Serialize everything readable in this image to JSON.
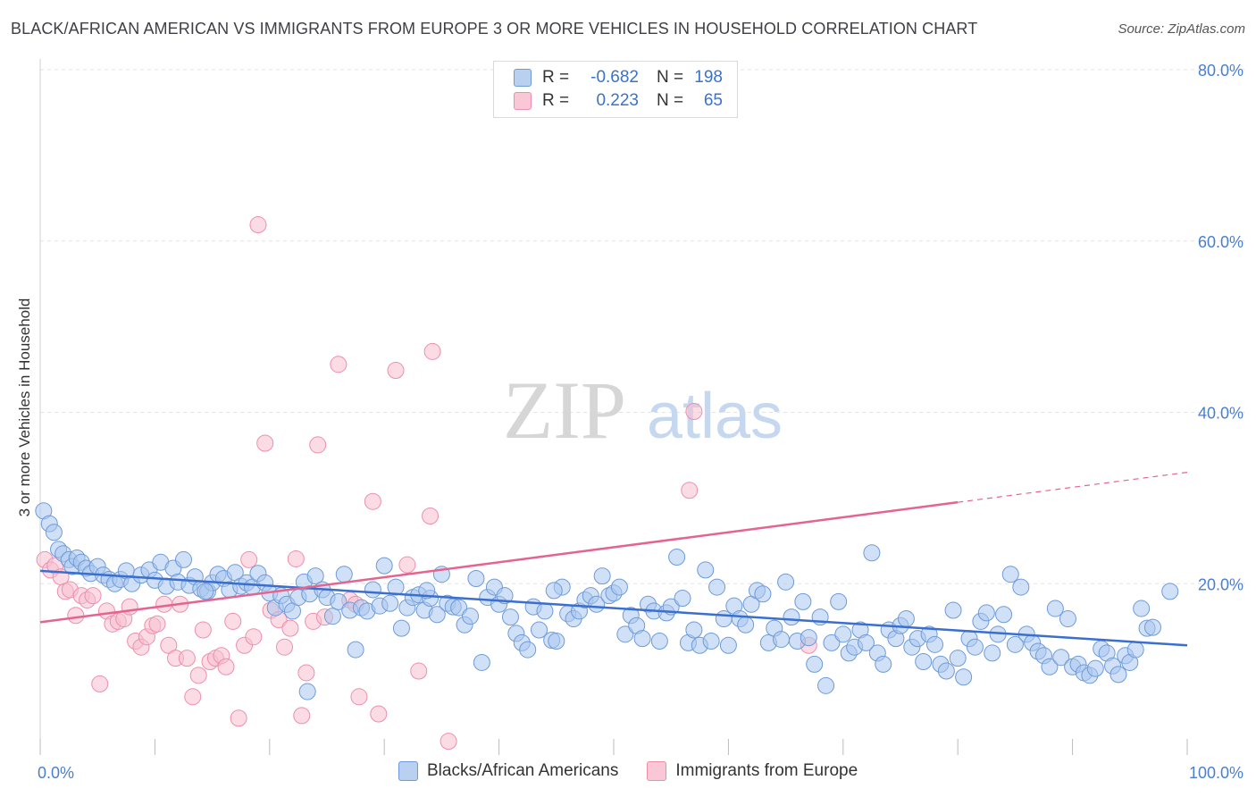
{
  "title": "BLACK/AFRICAN AMERICAN VS IMMIGRANTS FROM EUROPE 3 OR MORE VEHICLES IN HOUSEHOLD CORRELATION CHART",
  "source": "Source: ZipAtlas.com",
  "watermark": {
    "zip": "ZIP",
    "atlas": "atlas"
  },
  "legend": {
    "series1": {
      "r_label": "R =",
      "r_value": "-0.682",
      "n_label": "N =",
      "n_value": "198",
      "color": "#8fb4e8"
    },
    "series2": {
      "r_label": "R =",
      "r_value": "0.223",
      "n_label": "N =",
      "n_value": "65",
      "color": "#f4a7bf"
    }
  },
  "bottom_legend": {
    "series1": "Blacks/African Americans",
    "series2": "Immigrants from Europe"
  },
  "colors": {
    "blue_fill": "#a9c6ee",
    "blue_stroke": "#6e9bd8",
    "blue_line": "#3a6fd0",
    "pink_fill": "#f7bfd0",
    "pink_stroke": "#ec8fae",
    "pink_line": "#e5648f",
    "tick_text": "#4a7fd0",
    "grid": "#e3e3e3"
  },
  "chart_data": {
    "type": "scatter",
    "title": "BLACK/AFRICAN AMERICAN VS IMMIGRANTS FROM EUROPE 3 OR MORE VEHICLES IN HOUSEHOLD CORRELATION CHART",
    "xlabel": "",
    "ylabel": "3 or more Vehicles in Household",
    "xlim": [
      0,
      100
    ],
    "ylim": [
      0,
      80
    ],
    "x_tick_labels": [
      {
        "value": 0,
        "label": "0.0%"
      },
      {
        "value": 100,
        "label": "100.0%"
      }
    ],
    "y_tick_labels": [
      {
        "value": 20,
        "label": "20.0%"
      },
      {
        "value": 40,
        "label": "40.0%"
      },
      {
        "value": 60,
        "label": "60.0%"
      },
      {
        "value": 80,
        "label": "80.0%"
      }
    ],
    "grid": true,
    "legend_position": "top-center",
    "series": [
      {
        "name": "Blacks/African Americans",
        "color": "#8fb4e8",
        "trend": {
          "x": [
            0,
            100
          ],
          "y": [
            21.5,
            12.8
          ]
        },
        "points": [
          [
            0.3,
            28.5
          ],
          [
            0.8,
            27
          ],
          [
            1.2,
            26
          ],
          [
            1.6,
            24
          ],
          [
            2,
            23.5
          ],
          [
            2.5,
            22.8
          ],
          [
            2.8,
            22
          ],
          [
            3.2,
            23
          ],
          [
            3.6,
            22.5
          ],
          [
            4,
            21.8
          ],
          [
            4.4,
            21.2
          ],
          [
            5,
            22
          ],
          [
            5.5,
            21
          ],
          [
            6,
            20.5
          ],
          [
            6.5,
            20
          ],
          [
            7,
            20.5
          ],
          [
            7.5,
            21.5
          ],
          [
            8,
            20
          ],
          [
            8.8,
            21
          ],
          [
            9.5,
            21.6
          ],
          [
            10,
            20.4
          ],
          [
            10.5,
            22.5
          ],
          [
            11,
            19.7
          ],
          [
            11.6,
            21.8
          ],
          [
            12,
            20.2
          ],
          [
            12.5,
            22.8
          ],
          [
            13,
            19.8
          ],
          [
            13.5,
            20.8
          ],
          [
            14,
            19.4
          ],
          [
            14.6,
            19.1
          ],
          [
            15,
            20.1
          ],
          [
            15.5,
            21.1
          ],
          [
            16,
            20.6
          ],
          [
            16.5,
            19.3
          ],
          [
            17,
            21.3
          ],
          [
            17.5,
            19.7
          ],
          [
            18,
            20.1
          ],
          [
            18.5,
            19.6
          ],
          [
            19,
            21.2
          ],
          [
            19.6,
            20.1
          ],
          [
            20,
            18.9
          ],
          [
            20.5,
            17.2
          ],
          [
            21,
            18.6
          ],
          [
            21.5,
            17.6
          ],
          [
            22,
            16.8
          ],
          [
            22.5,
            18.4
          ],
          [
            23,
            20.2
          ],
          [
            23.5,
            18.8
          ],
          [
            24,
            20.9
          ],
          [
            24.6,
            19.3
          ],
          [
            25,
            18.4
          ],
          [
            25.5,
            16.2
          ],
          [
            26,
            17.9
          ],
          [
            26.5,
            21.1
          ],
          [
            27,
            16.9
          ],
          [
            27.5,
            12.3
          ],
          [
            28,
            17.2
          ],
          [
            28.5,
            16.8
          ],
          [
            29,
            19.3
          ],
          [
            29.6,
            17.4
          ],
          [
            30,
            22.1
          ],
          [
            30.5,
            17.7
          ],
          [
            31,
            19.6
          ],
          [
            31.5,
            14.8
          ],
          [
            32,
            17.2
          ],
          [
            32.5,
            18.4
          ],
          [
            33,
            18.7
          ],
          [
            33.5,
            16.9
          ],
          [
            34,
            18.3
          ],
          [
            34.6,
            16.4
          ],
          [
            35,
            21.1
          ],
          [
            35.5,
            17.7
          ],
          [
            36,
            17.3
          ],
          [
            36.5,
            17.2
          ],
          [
            37,
            15.2
          ],
          [
            37.5,
            16.2
          ],
          [
            38,
            20.6
          ],
          [
            38.5,
            10.8
          ],
          [
            39,
            18.4
          ],
          [
            39.6,
            19.6
          ],
          [
            40,
            17.6
          ],
          [
            40.5,
            18.6
          ],
          [
            41,
            16.1
          ],
          [
            41.5,
            14.2
          ],
          [
            42,
            13.1
          ],
          [
            42.5,
            12.3
          ],
          [
            43,
            17.3
          ],
          [
            43.5,
            14.6
          ],
          [
            44,
            16.8
          ],
          [
            44.6,
            13.4
          ],
          [
            45,
            13.3
          ],
          [
            45.5,
            19.6
          ],
          [
            46,
            16.5
          ],
          [
            46.5,
            15.9
          ],
          [
            47,
            16.8
          ],
          [
            47.5,
            18.1
          ],
          [
            48,
            18.6
          ],
          [
            48.5,
            17.6
          ],
          [
            49,
            20.9
          ],
          [
            49.6,
            18.6
          ],
          [
            50,
            18.9
          ],
          [
            50.5,
            19.6
          ],
          [
            51,
            14.1
          ],
          [
            51.5,
            16.3
          ],
          [
            52,
            15.1
          ],
          [
            52.5,
            13.6
          ],
          [
            53,
            17.6
          ],
          [
            53.5,
            16.8
          ],
          [
            54,
            13.3
          ],
          [
            54.6,
            16.6
          ],
          [
            55,
            17.3
          ],
          [
            55.5,
            23.1
          ],
          [
            56,
            18.3
          ],
          [
            56.5,
            13.1
          ],
          [
            57,
            14.6
          ],
          [
            57.5,
            12.8
          ],
          [
            58,
            21.6
          ],
          [
            58.5,
            13.3
          ],
          [
            59,
            19.6
          ],
          [
            59.6,
            15.9
          ],
          [
            60,
            12.8
          ],
          [
            60.5,
            17.4
          ],
          [
            61,
            15.9
          ],
          [
            61.5,
            15.2
          ],
          [
            62,
            17.6
          ],
          [
            62.5,
            19.2
          ],
          [
            63,
            18.8
          ],
          [
            63.5,
            13.1
          ],
          [
            64,
            14.8
          ],
          [
            64.6,
            13.5
          ],
          [
            65,
            20.2
          ],
          [
            65.5,
            16.1
          ],
          [
            66,
            13.3
          ],
          [
            66.5,
            17.9
          ],
          [
            67,
            13.7
          ],
          [
            67.5,
            10.6
          ],
          [
            68,
            16.1
          ],
          [
            68.5,
            8.1
          ],
          [
            69,
            13.1
          ],
          [
            69.6,
            17.9
          ],
          [
            70,
            14.1
          ],
          [
            70.5,
            11.9
          ],
          [
            71,
            12.6
          ],
          [
            71.5,
            14.6
          ],
          [
            72,
            13.1
          ],
          [
            72.5,
            23.6
          ],
          [
            73,
            11.9
          ],
          [
            73.5,
            10.6
          ],
          [
            74,
            14.6
          ],
          [
            74.6,
            13.6
          ],
          [
            75,
            15.1
          ],
          [
            75.5,
            15.9
          ],
          [
            76,
            12.6
          ],
          [
            76.5,
            13.6
          ],
          [
            77,
            10.9
          ],
          [
            77.5,
            14.1
          ],
          [
            78,
            12.9
          ],
          [
            78.5,
            10.6
          ],
          [
            79,
            9.8
          ],
          [
            79.6,
            16.9
          ],
          [
            80,
            11.3
          ],
          [
            80.5,
            9.1
          ],
          [
            81,
            13.6
          ],
          [
            81.5,
            12.6
          ],
          [
            82,
            15.6
          ],
          [
            82.5,
            16.6
          ],
          [
            83,
            11.9
          ],
          [
            83.5,
            14.1
          ],
          [
            84,
            16.4
          ],
          [
            84.6,
            21.1
          ],
          [
            85,
            12.9
          ],
          [
            85.5,
            19.6
          ],
          [
            86,
            14.1
          ],
          [
            86.5,
            13.1
          ],
          [
            87,
            12.1
          ],
          [
            87.5,
            11.6
          ],
          [
            88,
            10.3
          ],
          [
            88.5,
            17.1
          ],
          [
            89,
            11.4
          ],
          [
            89.6,
            15.9
          ],
          [
            90,
            10.3
          ],
          [
            90.5,
            10.6
          ],
          [
            91,
            9.6
          ],
          [
            91.5,
            9.3
          ],
          [
            92,
            10.1
          ],
          [
            92.5,
            12.4
          ],
          [
            93,
            11.9
          ],
          [
            93.5,
            10.4
          ],
          [
            94,
            9.4
          ],
          [
            94.6,
            11.6
          ],
          [
            95,
            10.8
          ],
          [
            95.5,
            12.3
          ],
          [
            96,
            17.1
          ],
          [
            96.5,
            14.8
          ],
          [
            97,
            14.9
          ],
          [
            98.5,
            19.1
          ],
          [
            14.4,
            19.1
          ],
          [
            33.7,
            19.2
          ],
          [
            23.3,
            7.4
          ],
          [
            44.8,
            19.2
          ]
        ]
      },
      {
        "name": "Immigrants from Europe",
        "color": "#f4a7bf",
        "trend": {
          "x": [
            0,
            80
          ],
          "y": [
            15.5,
            29.5
          ]
        },
        "trend_extension": {
          "x": [
            80,
            100
          ],
          "y": [
            29.5,
            33
          ]
        },
        "points": [
          [
            0.4,
            22.8
          ],
          [
            0.9,
            21.6
          ],
          [
            1.3,
            22.1
          ],
          [
            1.8,
            20.8
          ],
          [
            2.2,
            19.1
          ],
          [
            2.6,
            19.3
          ],
          [
            3.1,
            16.3
          ],
          [
            3.6,
            18.6
          ],
          [
            4.1,
            18.1
          ],
          [
            4.6,
            18.6
          ],
          [
            5.2,
            8.3
          ],
          [
            5.8,
            16.8
          ],
          [
            6.3,
            15.3
          ],
          [
            6.8,
            15.6
          ],
          [
            7.3,
            15.9
          ],
          [
            7.8,
            17.3
          ],
          [
            8.3,
            13.3
          ],
          [
            8.8,
            12.6
          ],
          [
            9.3,
            13.8
          ],
          [
            9.8,
            15.1
          ],
          [
            10.2,
            15.3
          ],
          [
            10.8,
            17.6
          ],
          [
            11.2,
            12.8
          ],
          [
            11.8,
            11.3
          ],
          [
            12.2,
            17.6
          ],
          [
            12.8,
            11.3
          ],
          [
            13.3,
            6.8
          ],
          [
            13.8,
            9.3
          ],
          [
            14.2,
            14.6
          ],
          [
            14.8,
            10.9
          ],
          [
            15.3,
            11.3
          ],
          [
            15.8,
            11.6
          ],
          [
            16.2,
            10.3
          ],
          [
            16.8,
            15.6
          ],
          [
            17.3,
            4.3
          ],
          [
            17.8,
            12.8
          ],
          [
            18.2,
            22.8
          ],
          [
            18.6,
            13.8
          ],
          [
            19,
            61.9
          ],
          [
            19.6,
            36.4
          ],
          [
            20.1,
            16.9
          ],
          [
            20.8,
            15.8
          ],
          [
            21.3,
            12.6
          ],
          [
            21.8,
            14.8
          ],
          [
            22.3,
            22.9
          ],
          [
            22.8,
            4.6
          ],
          [
            23.2,
            9.6
          ],
          [
            23.8,
            15.6
          ],
          [
            24.2,
            36.2
          ],
          [
            24.8,
            16.1
          ],
          [
            26,
            45.6
          ],
          [
            27,
            18.1
          ],
          [
            27.5,
            17.6
          ],
          [
            27.8,
            6.8
          ],
          [
            29,
            29.6
          ],
          [
            29.5,
            4.8
          ],
          [
            31,
            44.9
          ],
          [
            32,
            22.2
          ],
          [
            33,
            9.8
          ],
          [
            34,
            27.9
          ],
          [
            34.2,
            47.1
          ],
          [
            35.6,
            1.6
          ],
          [
            57,
            40.1
          ],
          [
            56.6,
            30.9
          ],
          [
            67,
            12.8
          ]
        ]
      }
    ]
  }
}
